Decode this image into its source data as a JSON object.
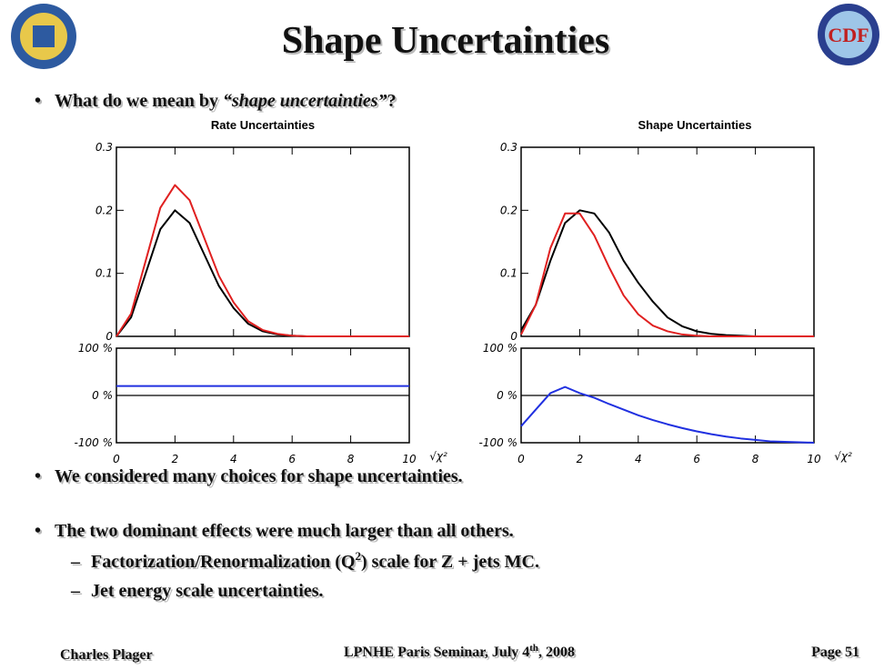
{
  "title": "Shape Uncertainties",
  "bullets": [
    {
      "text": "What do we mean by ",
      "italic": "“shape uncertainties”",
      "end": "?"
    },
    "We considered many choices for shape uncertainties.",
    "The two dominant effects were much larger than all others."
  ],
  "subbullets": [
    {
      "text": "Factorization/Renormalization (Q",
      "sup": "2",
      "end": ") scale for Z + jets MC."
    },
    "Jet energy scale uncertainties."
  ],
  "footer": {
    "left": "Charles Plager",
    "center": {
      "text": "LPNHE Paris Seminar, July 4",
      "sup": "th",
      "end": ", 2008"
    },
    "right": "Page 51"
  },
  "charts": [
    {
      "type": "line",
      "title": "Rate Uncertainties",
      "xlabel": "√χ²",
      "x": [
        0,
        0.5,
        1,
        1.5,
        2,
        2.5,
        3,
        3.5,
        4,
        4.5,
        5,
        5.5,
        6,
        6.5,
        7,
        7.5,
        8,
        8.5,
        9,
        9.5,
        10
      ],
      "xlim": [
        0,
        10
      ],
      "xticks": [
        0,
        2,
        4,
        6,
        8,
        10
      ],
      "ylim": [
        0,
        0.3
      ],
      "yticks": [
        0,
        0.1,
        0.2,
        0.3
      ],
      "series": [
        {
          "color": "#000000",
          "values": [
            0,
            0.03,
            0.1,
            0.17,
            0.2,
            0.18,
            0.13,
            0.08,
            0.045,
            0.02,
            0.008,
            0.003,
            0.001,
            0,
            0,
            0,
            0,
            0,
            0,
            0,
            0
          ]
        },
        {
          "color": "#e02020",
          "values": [
            0,
            0.036,
            0.12,
            0.204,
            0.24,
            0.216,
            0.156,
            0.096,
            0.054,
            0.024,
            0.01,
            0.004,
            0.001,
            0,
            0,
            0,
            0,
            0,
            0,
            0,
            0
          ]
        }
      ],
      "ratio": {
        "ylim": [
          -100,
          100
        ],
        "yticks": [
          {
            "value": 100,
            "label": "100 %"
          },
          {
            "value": 0,
            "label": "0 %"
          },
          {
            "value": -100,
            "label": "-100 %"
          }
        ],
        "color": "#2030e0",
        "values": [
          20,
          20,
          20,
          20,
          20,
          20,
          20,
          20,
          20,
          20,
          20,
          20,
          20,
          20,
          20,
          20,
          20,
          20,
          20,
          20,
          20
        ]
      }
    },
    {
      "type": "line",
      "title": "Shape Uncertainties",
      "xlabel": "√χ²",
      "x": [
        0,
        0.5,
        1,
        1.5,
        2,
        2.5,
        3,
        3.5,
        4,
        4.5,
        5,
        5.5,
        6,
        6.5,
        7,
        7.5,
        8,
        8.5,
        9,
        9.5,
        10
      ],
      "xlim": [
        0,
        10
      ],
      "xticks": [
        0,
        2,
        4,
        6,
        8,
        10
      ],
      "ylim": [
        0,
        0.3
      ],
      "yticks": [
        0,
        0.1,
        0.2,
        0.3
      ],
      "series": [
        {
          "color": "#000000",
          "values": [
            0.01,
            0.05,
            0.12,
            0.18,
            0.2,
            0.195,
            0.165,
            0.12,
            0.085,
            0.055,
            0.03,
            0.016,
            0.008,
            0.004,
            0.002,
            0.001,
            0,
            0,
            0,
            0,
            0
          ]
        },
        {
          "color": "#e02020",
          "values": [
            0.003,
            0.05,
            0.14,
            0.195,
            0.195,
            0.16,
            0.11,
            0.065,
            0.035,
            0.017,
            0.008,
            0.003,
            0.001,
            0,
            0,
            0,
            0,
            0,
            0,
            0,
            0
          ]
        }
      ],
      "ratio": {
        "ylim": [
          -100,
          100
        ],
        "yticks": [
          {
            "value": 100,
            "label": "100 %"
          },
          {
            "value": 0,
            "label": "0 %"
          },
          {
            "value": -100,
            "label": "-100 %"
          }
        ],
        "color": "#2030e0",
        "values": [
          -65,
          -30,
          5,
          18,
          5,
          -5,
          -18,
          -30,
          -42,
          -52,
          -61,
          -69,
          -76,
          -82,
          -87,
          -91,
          -94,
          -97,
          -98,
          -99,
          -100
        ]
      }
    }
  ]
}
